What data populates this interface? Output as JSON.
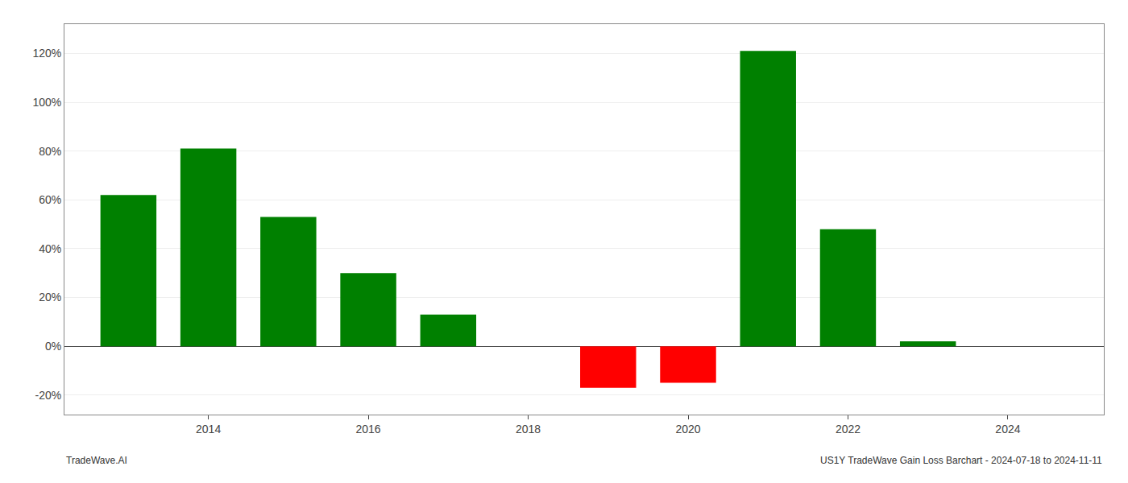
{
  "chart_data": {
    "type": "bar",
    "x": [
      2013,
      2014,
      2015,
      2016,
      2017,
      2019,
      2020,
      2021,
      2022,
      2023
    ],
    "values": [
      0.62,
      0.81,
      0.53,
      0.3,
      0.13,
      -0.17,
      -0.15,
      1.21,
      0.48,
      0.02
    ],
    "colors": [
      "#008000",
      "#008000",
      "#008000",
      "#008000",
      "#008000",
      "#ff0000",
      "#ff0000",
      "#008000",
      "#008000",
      "#008000"
    ],
    "xlim": [
      2012.2,
      2025.2
    ],
    "xticks": [
      2014,
      2016,
      2018,
      2020,
      2022,
      2024
    ],
    "ylim": [
      -0.28,
      1.32
    ],
    "yticks": [
      {
        "value": -0.2,
        "label": "-20%"
      },
      {
        "value": 0.0,
        "label": "0%"
      },
      {
        "value": 0.2,
        "label": "20%"
      },
      {
        "value": 0.4,
        "label": "40%"
      },
      {
        "value": 0.6,
        "label": "60%"
      },
      {
        "value": 0.8,
        "label": "80%"
      },
      {
        "value": 1.0,
        "label": "100%"
      },
      {
        "value": 1.2,
        "label": "120%"
      }
    ],
    "grid": true,
    "annotations": [
      "TradeWave.AI",
      "US1Y TradeWave Gain Loss Barchart - 2024-07-18 to 2024-11-11"
    ]
  }
}
